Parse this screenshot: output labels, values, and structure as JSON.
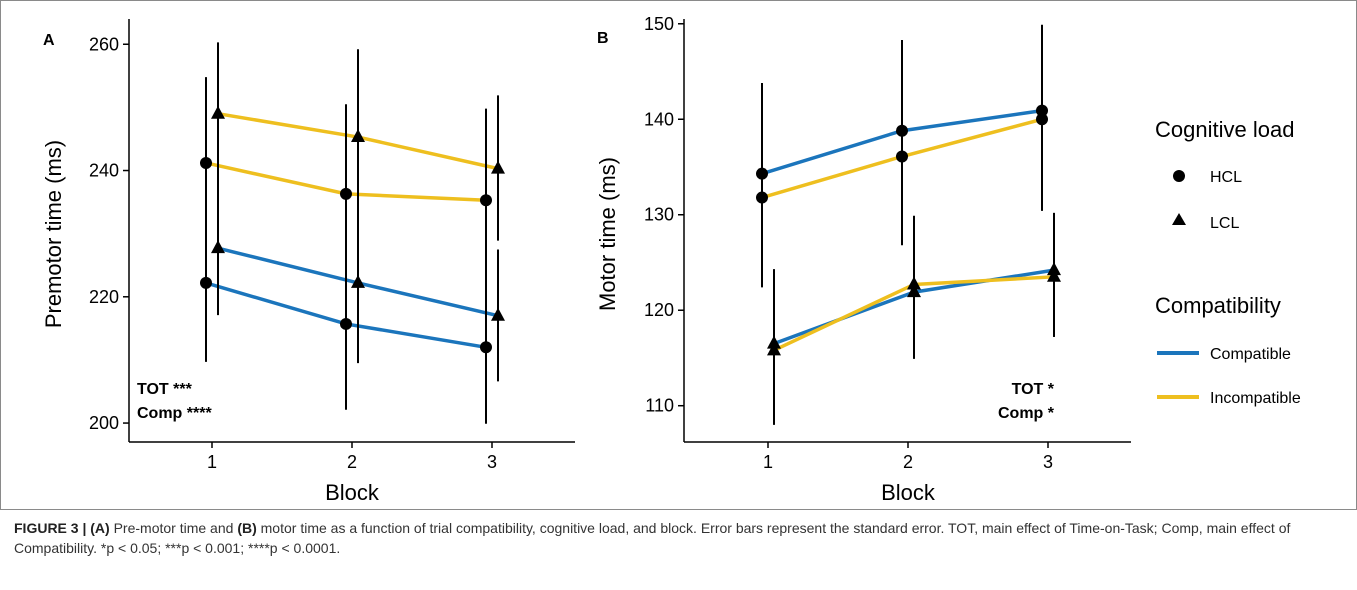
{
  "figure": {
    "caption": {
      "label": "FIGURE 3 |",
      "part_a_label": "(A)",
      "text_1": " Pre-motor time and ",
      "part_b_label": "(B)",
      "text_2": " motor time as a function of trial compatibility, cognitive load, and block. Error bars represent the standard error. TOT, main effect of Time-on-Task; Comp, main effect of Compatibility. *p < 0.05; ***p < 0.001; ****p < 0.0001."
    }
  },
  "legend": {
    "cognitive_load_title": "Cognitive load",
    "cognitive_load_items": [
      {
        "label": "HCL",
        "shape": "circle"
      },
      {
        "label": "LCL",
        "shape": "triangle"
      }
    ],
    "compatibility_title": "Compatibility",
    "compatibility_items": [
      {
        "label": "Compatible",
        "color": "#1b75bc"
      },
      {
        "label": "Incompatible",
        "color": "#eebf1f"
      }
    ]
  },
  "chart_data": [
    {
      "panel": "A",
      "type": "line",
      "xlabel": "Block",
      "ylabel": "Premotor time (ms)",
      "x_ticks": [
        "1",
        "2",
        "3"
      ],
      "y_ticks": [
        "200",
        "220",
        "240",
        "260"
      ],
      "ylim": [
        197,
        264
      ],
      "annotations": [
        "TOT ***",
        "Comp ****"
      ],
      "annotation_position": "bottom-left",
      "series": [
        {
          "compatibility": "Incompatible",
          "load": "LCL",
          "color": "#eebf1f",
          "marker": "triangle",
          "values": [
            249.0,
            245.3,
            240.3
          ],
          "err_low": [
            237.9,
            231.5,
            228.9
          ],
          "err_high": [
            260.3,
            259.2,
            251.9
          ]
        },
        {
          "compatibility": "Incompatible",
          "load": "HCL",
          "color": "#eebf1f",
          "marker": "circle",
          "values": [
            241.2,
            236.3,
            235.3
          ],
          "err_low": [
            227.6,
            222.1,
            220.9
          ],
          "err_high": [
            254.8,
            250.5,
            249.8
          ]
        },
        {
          "compatibility": "Compatible",
          "load": "LCL",
          "color": "#1b75bc",
          "marker": "triangle",
          "values": [
            227.7,
            222.2,
            217.0
          ],
          "err_low": [
            217.1,
            209.5,
            206.6
          ],
          "err_high": [
            238.4,
            235.1,
            227.5
          ]
        },
        {
          "compatibility": "Compatible",
          "load": "HCL",
          "color": "#1b75bc",
          "marker": "circle",
          "values": [
            222.2,
            215.7,
            212.0
          ],
          "err_low": [
            209.7,
            202.1,
            199.9
          ],
          "err_high": [
            234.7,
            229.7,
            224.3
          ]
        }
      ]
    },
    {
      "panel": "B",
      "type": "line",
      "xlabel": "Block",
      "ylabel": "Motor time (ms)",
      "x_ticks": [
        "1",
        "2",
        "3"
      ],
      "y_ticks": [
        "110",
        "120",
        "130",
        "140",
        "150"
      ],
      "ylim": [
        106.2,
        150.5
      ],
      "annotations": [
        "TOT *",
        "Comp *"
      ],
      "annotation_position": "bottom-right",
      "series": [
        {
          "compatibility": "Compatible",
          "load": "HCL",
          "color": "#1b75bc",
          "marker": "circle",
          "values": [
            134.3,
            138.8,
            140.9
          ],
          "err_low": [
            124.8,
            129.3,
            131.8
          ],
          "err_high": [
            143.8,
            148.3,
            149.9
          ]
        },
        {
          "compatibility": "Incompatible",
          "load": "HCL",
          "color": "#eebf1f",
          "marker": "circle",
          "values": [
            131.8,
            136.1,
            140.0
          ],
          "err_low": [
            122.4,
            126.8,
            130.4
          ],
          "err_high": [
            141.2,
            145.4,
            149.5
          ]
        },
        {
          "compatibility": "Compatible",
          "load": "LCL",
          "color": "#1b75bc",
          "marker": "triangle",
          "values": [
            116.5,
            121.9,
            124.2
          ],
          "err_low": [
            108.7,
            114.9,
            118.5
          ],
          "err_high": [
            124.3,
            128.7,
            130.2
          ]
        },
        {
          "compatibility": "Incompatible",
          "load": "LCL",
          "color": "#eebf1f",
          "marker": "triangle",
          "values": [
            115.8,
            122.7,
            123.5
          ],
          "err_low": [
            108.0,
            115.7,
            117.2
          ],
          "err_high": [
            123.6,
            129.9,
            129.8
          ]
        }
      ]
    }
  ]
}
